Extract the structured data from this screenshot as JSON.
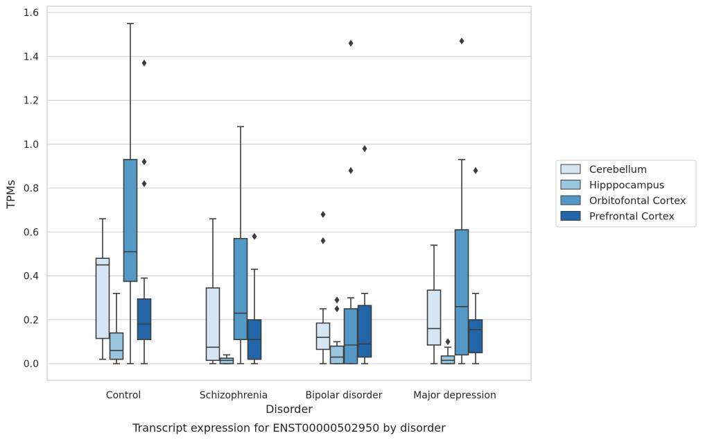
{
  "chart_data": {
    "type": "boxplot",
    "caption": "Transcript expression for ENST00000502950 by disorder",
    "xlabel": "Disorder",
    "ylabel": "TPMs",
    "ylim": [
      -0.075,
      1.63
    ],
    "yticks": [
      "0.0",
      "0.2",
      "0.4",
      "0.6",
      "0.8",
      "1.0",
      "1.2",
      "1.4",
      "1.6"
    ],
    "ytick_values": [
      0,
      0.2,
      0.4,
      0.6,
      0.8,
      1.0,
      1.2,
      1.4,
      1.6
    ],
    "grid": "horizontal",
    "legend_position": "right",
    "categories": [
      "Control",
      "Schizophrenia",
      "Bipolar disorder",
      "Major depression"
    ],
    "series": [
      {
        "name": "Cerebellum",
        "color": "#d6e5f3",
        "boxes": [
          {
            "whislo": 0.02,
            "q1": 0.115,
            "med": 0.45,
            "q3": 0.48,
            "whishi": 0.66,
            "fliers": []
          },
          {
            "whislo": 0.0,
            "q1": 0.015,
            "med": 0.075,
            "q3": 0.345,
            "whishi": 0.66,
            "fliers": []
          },
          {
            "whislo": 0.0,
            "q1": 0.065,
            "med": 0.12,
            "q3": 0.185,
            "whishi": 0.25,
            "fliers": [
              0.56,
              0.68
            ]
          },
          {
            "whislo": 0.0,
            "q1": 0.085,
            "med": 0.16,
            "q3": 0.335,
            "whishi": 0.54,
            "fliers": []
          }
        ]
      },
      {
        "name": "Hipppocampus",
        "color": "#9ac5de",
        "boxes": [
          {
            "whislo": 0.0,
            "q1": 0.02,
            "med": 0.06,
            "q3": 0.14,
            "whishi": 0.32,
            "fliers": []
          },
          {
            "whislo": 0.0,
            "q1": 0.0,
            "med": 0.015,
            "q3": 0.025,
            "whishi": 0.04,
            "fliers": []
          },
          {
            "whislo": 0.0,
            "q1": 0.0,
            "med": 0.03,
            "q3": 0.08,
            "whishi": 0.1,
            "fliers": [
              0.25,
              0.29
            ]
          },
          {
            "whislo": 0.0,
            "q1": 0.0,
            "med": 0.015,
            "q3": 0.035,
            "whishi": 0.075,
            "fliers": [
              0.1
            ]
          }
        ]
      },
      {
        "name": "Orbitofontal Cortex",
        "color": "#5498c6",
        "boxes": [
          {
            "whislo": 0.0,
            "q1": 0.375,
            "med": 0.51,
            "q3": 0.93,
            "whishi": 1.55,
            "fliers": []
          },
          {
            "whislo": 0.0,
            "q1": 0.11,
            "med": 0.23,
            "q3": 0.57,
            "whishi": 1.08,
            "fliers": []
          },
          {
            "whislo": 0.0,
            "q1": 0.0,
            "med": 0.085,
            "q3": 0.25,
            "whishi": 0.3,
            "fliers": [
              0.88,
              1.46
            ]
          },
          {
            "whislo": 0.0,
            "q1": 0.04,
            "med": 0.26,
            "q3": 0.61,
            "whishi": 0.93,
            "fliers": [
              1.47
            ]
          }
        ]
      },
      {
        "name": "Prefrontal Cortex",
        "color": "#2266a9",
        "boxes": [
          {
            "whislo": 0.0,
            "q1": 0.11,
            "med": 0.18,
            "q3": 0.295,
            "whishi": 0.39,
            "fliers": [
              0.82,
              0.92,
              1.37
            ]
          },
          {
            "whislo": 0.0,
            "q1": 0.02,
            "med": 0.11,
            "q3": 0.2,
            "whishi": 0.43,
            "fliers": [
              0.58
            ]
          },
          {
            "whislo": 0.0,
            "q1": 0.03,
            "med": 0.09,
            "q3": 0.265,
            "whishi": 0.32,
            "fliers": [
              0.98
            ]
          },
          {
            "whislo": 0.0,
            "q1": 0.05,
            "med": 0.155,
            "q3": 0.2,
            "whishi": 0.32,
            "fliers": [
              0.88
            ]
          }
        ]
      }
    ]
  }
}
